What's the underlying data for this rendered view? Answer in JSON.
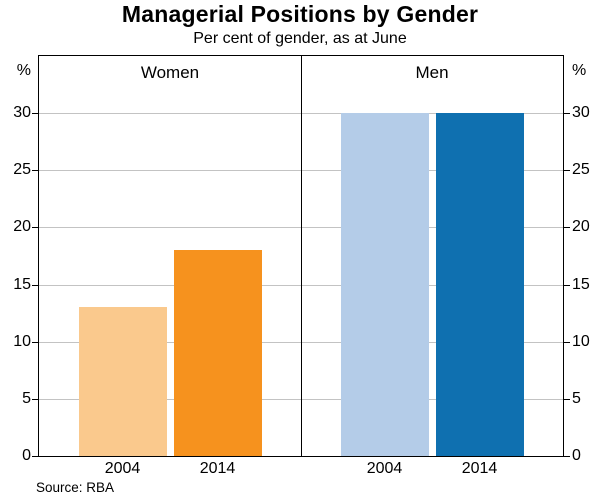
{
  "title": "Managerial Positions by Gender",
  "subtitle": "Per cent of gender, as at June",
  "source": "Source: RBA",
  "chart_data": {
    "type": "bar",
    "unit_label": "%",
    "ylim": [
      0,
      35
    ],
    "yticks": [
      0,
      5,
      10,
      15,
      20,
      25,
      30
    ],
    "grid": true,
    "gridline_color": "#c3c3c3",
    "frame_color": "#000000",
    "categories": [
      "2004",
      "2014"
    ],
    "panels": [
      {
        "label": "Women",
        "bars": [
          {
            "category": "2004",
            "value": 13,
            "color": "#FAC98D"
          },
          {
            "category": "2014",
            "value": 18,
            "color": "#F6921E"
          }
        ]
      },
      {
        "label": "Men",
        "bars": [
          {
            "category": "2004",
            "value": 30,
            "color": "#B4CCE8"
          },
          {
            "category": "2014",
            "value": 30,
            "color": "#0F70B0"
          }
        ]
      }
    ]
  }
}
